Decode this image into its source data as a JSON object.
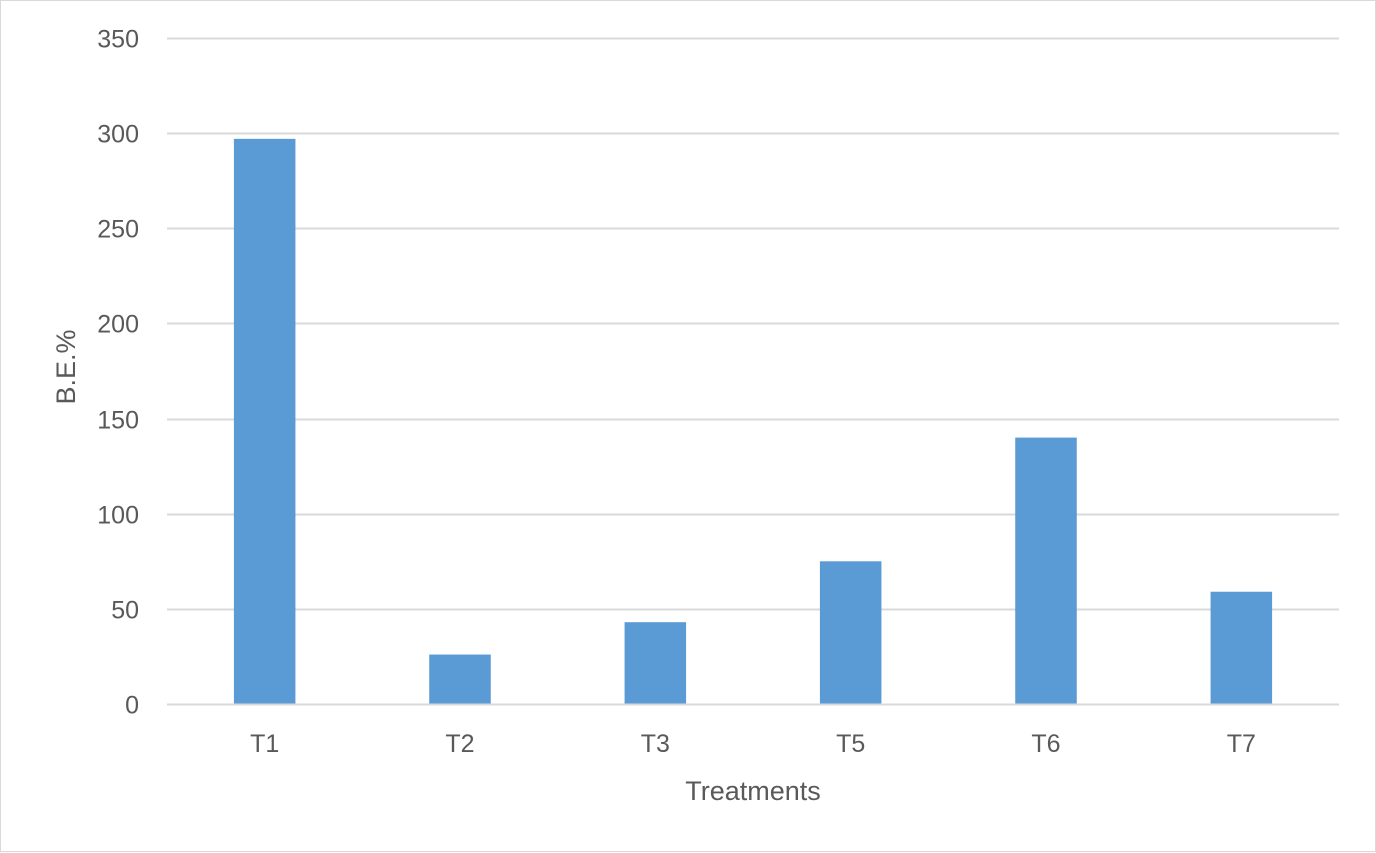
{
  "chart_data": {
    "type": "bar",
    "title": "",
    "categories": [
      "T1",
      "T2",
      "T3",
      "T5",
      "T6",
      "T7"
    ],
    "values": [
      297,
      26,
      43,
      75,
      140,
      59
    ],
    "xlabel": "Treatments",
    "ylabel": "B.E.%",
    "ylim": [
      0,
      350
    ],
    "yticks": [
      0,
      50,
      100,
      150,
      200,
      250,
      300,
      350
    ],
    "grid": true,
    "legend": "none",
    "colors": {
      "bar": "#5b9bd5",
      "grid": "#d9d9d9",
      "text": "#595959"
    }
  }
}
